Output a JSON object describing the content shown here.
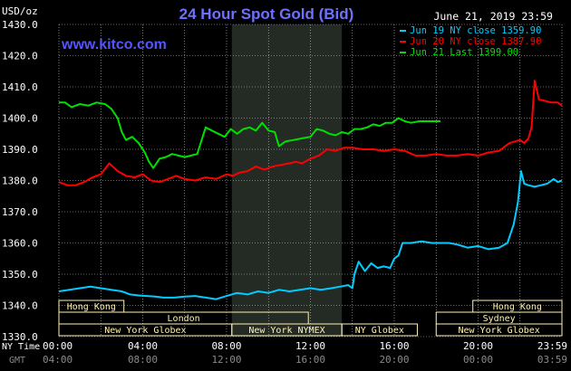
{
  "chart_data": {
    "type": "line",
    "title": "24 Hour Spot Gold (Bid)",
    "ylabel": "USD/oz",
    "timestamp": "June 21, 2019 23:59",
    "watermark": "www.kitco.com",
    "colors": {
      "background": "#000000",
      "title": "#6f70ff",
      "watermark": "#5555ff",
      "grid": "#ffffff",
      "shade": "#242a24",
      "session_box": "#fff2b2",
      "session_text": "#1a3399",
      "axis_text": "#ffffff",
      "footer_text": "#8a8a8a"
    },
    "ylim": [
      1330,
      1430
    ],
    "xlim": [
      0,
      24
    ],
    "yticks": [
      {
        "value": 1330,
        "label": "1330.0"
      },
      {
        "value": 1340,
        "label": "1340.0"
      },
      {
        "value": 1350,
        "label": "1350.0"
      },
      {
        "value": 1360,
        "label": "1360.0"
      },
      {
        "value": 1370,
        "label": "1370.0"
      },
      {
        "value": 1380,
        "label": "1380.0"
      },
      {
        "value": 1390,
        "label": "1390.0"
      },
      {
        "value": 1400,
        "label": "1400.0"
      },
      {
        "value": 1410,
        "label": "1410.0"
      },
      {
        "value": 1420,
        "label": "1420.0"
      },
      {
        "value": 1430,
        "label": "1430.0"
      }
    ],
    "xticks": [
      {
        "hour": 0,
        "ny": "00:00",
        "gmt": "04:00"
      },
      {
        "hour": 4,
        "ny": "04:00",
        "gmt": "08:00"
      },
      {
        "hour": 8,
        "ny": "08:00",
        "gmt": "12:00"
      },
      {
        "hour": 12,
        "ny": "12:00",
        "gmt": "16:00"
      },
      {
        "hour": 16,
        "ny": "16:00",
        "gmt": "20:00"
      },
      {
        "hour": 20,
        "ny": "20:00",
        "gmt": "00:00"
      },
      {
        "hour": 24,
        "ny": "23:59",
        "gmt": "03:59"
      }
    ],
    "x_row_labels": {
      "ny": "NY Time",
      "gmt": "GMT"
    },
    "shaded_region": [
      8.25,
      13.5
    ],
    "sessions": [
      {
        "name": "Hong Kong",
        "start": 0,
        "end": 3.1,
        "row": 0
      },
      {
        "name": "London",
        "start": 0,
        "end": 11.9,
        "row": 1
      },
      {
        "name": "New York Globex",
        "start": 0,
        "end": 8.25,
        "row": 2
      },
      {
        "name": "New York NYMEX",
        "start": 8.25,
        "end": 13.5,
        "row": 2
      },
      {
        "name": "NY Globex",
        "start": 13.5,
        "end": 17.1,
        "row": 2
      },
      {
        "name": "Hong Kong",
        "start": 19.75,
        "end": 24,
        "row": 0
      },
      {
        "name": "Sydney",
        "start": 18.0,
        "end": 24,
        "row": 1
      },
      {
        "name": "New York Globex",
        "start": 18.0,
        "end": 24,
        "row": 2
      }
    ],
    "series": [
      {
        "name": "Jun 19 NY close 1359.90",
        "color": "#00ccff",
        "x": [
          0,
          0.5,
          1.0,
          1.5,
          2.0,
          2.5,
          3.0,
          3.4,
          3.8,
          4.2,
          4.6,
          5.0,
          5.5,
          6.0,
          6.5,
          7.0,
          7.5,
          8.0,
          8.5,
          9.0,
          9.5,
          10.0,
          10.5,
          11.0,
          11.5,
          12.0,
          12.5,
          13.0,
          13.4,
          13.8,
          14.0,
          14.1,
          14.3,
          14.6,
          14.9,
          15.2,
          15.5,
          15.8,
          16.0,
          16.2,
          16.4,
          16.8,
          17.3,
          17.8,
          18.2,
          18.6,
          19.0,
          19.5,
          20.0,
          20.5,
          21.0,
          21.4,
          21.7,
          21.9,
          22.05,
          22.2,
          22.4,
          22.7,
          23.0,
          23.3,
          23.6,
          23.8,
          24.0
        ],
        "y": [
          1344.5,
          1345.0,
          1345.5,
          1346.0,
          1345.5,
          1345.0,
          1344.5,
          1343.5,
          1343.2,
          1343.0,
          1342.8,
          1342.5,
          1342.5,
          1342.8,
          1343.0,
          1342.5,
          1342.0,
          1343.0,
          1344.0,
          1343.5,
          1344.5,
          1344.0,
          1345.0,
          1344.5,
          1345.0,
          1345.5,
          1345.0,
          1345.5,
          1346.0,
          1346.5,
          1345.5,
          1350.0,
          1354.0,
          1351.0,
          1353.5,
          1352.0,
          1352.5,
          1352.0,
          1355.0,
          1356.0,
          1360.0,
          1360.0,
          1360.5,
          1360.0,
          1360.0,
          1360.0,
          1359.5,
          1358.5,
          1359.0,
          1358.0,
          1358.5,
          1360.0,
          1366.0,
          1373.0,
          1383.0,
          1379.0,
          1378.5,
          1378.0,
          1378.5,
          1379.0,
          1380.5,
          1379.5,
          1380.0
        ]
      },
      {
        "name": "Jun 20 NY close 1387.90",
        "color": "#ff0000",
        "x": [
          0,
          0.4,
          0.8,
          1.2,
          1.6,
          2.0,
          2.4,
          2.8,
          3.2,
          3.6,
          4.0,
          4.4,
          4.8,
          5.2,
          5.6,
          6.0,
          6.5,
          7.0,
          7.5,
          8.0,
          8.3,
          8.6,
          9.0,
          9.4,
          9.8,
          10.2,
          10.6,
          11.0,
          11.3,
          11.6,
          12.0,
          12.4,
          12.8,
          13.2,
          13.6,
          14.0,
          14.5,
          15.0,
          15.5,
          16.0,
          16.5,
          17.0,
          17.5,
          18.0,
          18.5,
          19.0,
          19.5,
          20.0,
          20.5,
          21.0,
          21.5,
          22.0,
          22.2,
          22.4,
          22.55,
          22.7,
          22.9,
          23.2,
          23.5,
          23.8,
          24.0
        ],
        "y": [
          1379.5,
          1378.5,
          1378.5,
          1379.5,
          1381.0,
          1382.0,
          1385.5,
          1383.0,
          1381.5,
          1381.0,
          1382.0,
          1380.0,
          1379.5,
          1380.5,
          1381.5,
          1380.5,
          1380.0,
          1381.0,
          1380.5,
          1382.0,
          1381.5,
          1382.5,
          1383.0,
          1384.5,
          1383.5,
          1384.5,
          1385.0,
          1385.5,
          1386.0,
          1385.5,
          1387.0,
          1388.0,
          1390.0,
          1389.5,
          1390.5,
          1390.5,
          1390.0,
          1390.0,
          1389.5,
          1390.0,
          1389.5,
          1388.0,
          1388.0,
          1388.5,
          1388.0,
          1388.0,
          1388.5,
          1388.0,
          1389.0,
          1389.5,
          1392.0,
          1393.0,
          1392.0,
          1393.5,
          1397.0,
          1412.0,
          1406.0,
          1405.5,
          1405.0,
          1405.0,
          1404.0
        ]
      },
      {
        "name": "Jun 21 Last 1399.00",
        "color": "#00e000",
        "x": [
          0,
          0.3,
          0.6,
          1.0,
          1.4,
          1.8,
          2.2,
          2.5,
          2.8,
          3.0,
          3.2,
          3.5,
          3.8,
          4.1,
          4.3,
          4.5,
          4.8,
          5.1,
          5.4,
          5.7,
          6.0,
          6.3,
          6.6,
          7.0,
          7.3,
          7.6,
          7.9,
          8.2,
          8.5,
          8.8,
          9.1,
          9.4,
          9.7,
          10.0,
          10.3,
          10.5,
          10.8,
          11.2,
          11.6,
          12.0,
          12.3,
          12.6,
          12.9,
          13.2,
          13.5,
          13.8,
          14.1,
          14.4,
          14.7,
          15.0,
          15.3,
          15.6,
          15.9,
          16.2,
          16.5,
          16.8,
          17.2,
          17.6,
          18.0,
          18.2
        ],
        "y": [
          1405.0,
          1405.0,
          1403.5,
          1404.5,
          1404.0,
          1405.0,
          1404.5,
          1403.0,
          1400.0,
          1395.5,
          1393.0,
          1394.0,
          1392.0,
          1389.0,
          1386.0,
          1384.0,
          1387.0,
          1387.5,
          1388.5,
          1388.0,
          1387.5,
          1388.0,
          1388.5,
          1397.0,
          1396.0,
          1395.0,
          1394.0,
          1396.5,
          1395.0,
          1396.5,
          1397.0,
          1396.0,
          1398.5,
          1396.0,
          1395.5,
          1391.0,
          1392.5,
          1393.0,
          1393.5,
          1394.0,
          1396.5,
          1396.0,
          1395.0,
          1394.5,
          1395.5,
          1395.0,
          1396.5,
          1396.5,
          1397.0,
          1398.0,
          1397.5,
          1398.5,
          1398.5,
          1400.0,
          1399.0,
          1398.5,
          1399.0,
          1399.0,
          1399.0,
          1399.0
        ]
      }
    ]
  }
}
